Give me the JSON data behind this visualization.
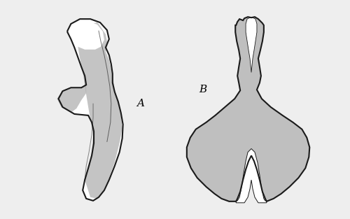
{
  "background_color": "#eeeeee",
  "label_A": "A",
  "label_B": "B",
  "label_fontsize": 11,
  "fig_width": 5.0,
  "fig_height": 3.13,
  "dpi": 100,
  "outline_color": "#1a1a1a",
  "stipple_color": "#b0b0b0",
  "stipple_alpha": 0.75,
  "line_width": 1.5,
  "white": "#ffffff"
}
